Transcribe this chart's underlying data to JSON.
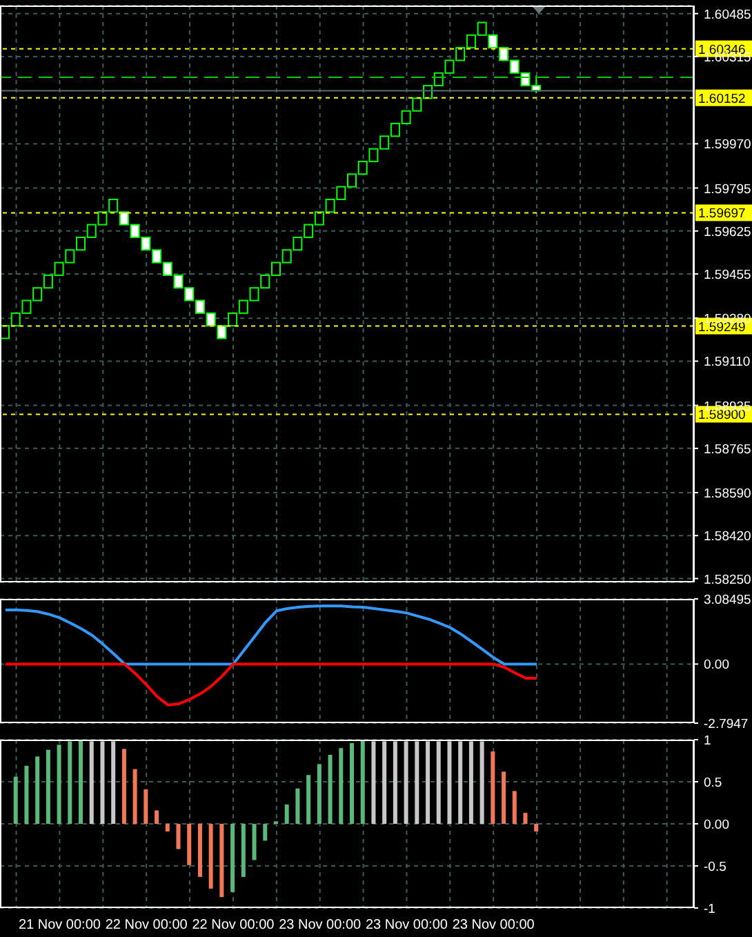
{
  "chart_data": [
    {
      "type": "candlestick",
      "tick_labels": "y",
      "grid": true,
      "categories": [
        null,
        null,
        null,
        null,
        null,
        null,
        null,
        null,
        null,
        null,
        null,
        null,
        null,
        null,
        null,
        null,
        null,
        null,
        null,
        null,
        null,
        null,
        null,
        null,
        null,
        null,
        null,
        null,
        null,
        null,
        null,
        null,
        null,
        null,
        null,
        null,
        null,
        null,
        null,
        null,
        null,
        null,
        null,
        null,
        null,
        null,
        null,
        null,
        null,
        null,
        null,
        null,
        null,
        null,
        null,
        null,
        null,
        null,
        null,
        null,
        null,
        null,
        null,
        null
      ],
      "ohlc": [
        [
          1.592,
          1.5925,
          1.592,
          1.5925
        ],
        [
          1.5925,
          1.593,
          1.5925,
          1.593
        ],
        [
          1.593,
          1.5935,
          1.593,
          1.5935
        ],
        [
          1.5935,
          1.594,
          1.5935,
          1.594
        ],
        [
          1.594,
          1.5945,
          1.594,
          1.5945
        ],
        [
          1.5945,
          1.595,
          1.5945,
          1.595
        ],
        [
          1.595,
          1.5955,
          1.595,
          1.5955
        ],
        [
          1.5955,
          1.596,
          1.5955,
          1.596
        ],
        [
          1.596,
          1.5965,
          1.596,
          1.5965
        ],
        [
          1.5965,
          1.597,
          1.5965,
          1.597
        ],
        [
          1.597,
          1.5975,
          1.597,
          1.5975
        ],
        [
          1.597,
          1.597,
          1.5965,
          1.5965
        ],
        [
          1.5965,
          1.5965,
          1.596,
          1.596
        ],
        [
          1.596,
          1.596,
          1.5955,
          1.5955
        ],
        [
          1.5955,
          1.5955,
          1.595,
          1.595
        ],
        [
          1.595,
          1.595,
          1.5945,
          1.5945
        ],
        [
          1.5945,
          1.5945,
          1.594,
          1.594
        ],
        [
          1.594,
          1.594,
          1.5935,
          1.5935
        ],
        [
          1.5935,
          1.5935,
          1.593,
          1.593
        ],
        [
          1.593,
          1.593,
          1.5925,
          1.5925
        ],
        [
          1.5925,
          1.5925,
          1.592,
          1.592
        ],
        [
          1.5925,
          1.593,
          1.5925,
          1.593
        ],
        [
          1.593,
          1.5935,
          1.593,
          1.5935
        ],
        [
          1.5935,
          1.594,
          1.5935,
          1.594
        ],
        [
          1.594,
          1.5945,
          1.594,
          1.5945
        ],
        [
          1.5945,
          1.595,
          1.5945,
          1.595
        ],
        [
          1.595,
          1.5955,
          1.595,
          1.5955
        ],
        [
          1.5955,
          1.596,
          1.5955,
          1.596
        ],
        [
          1.596,
          1.5965,
          1.596,
          1.5965
        ],
        [
          1.5965,
          1.597,
          1.5965,
          1.597
        ],
        [
          1.597,
          1.5975,
          1.597,
          1.5975
        ],
        [
          1.5975,
          1.598,
          1.5975,
          1.598
        ],
        [
          1.598,
          1.5985,
          1.598,
          1.5985
        ],
        [
          1.5985,
          1.599,
          1.5985,
          1.599
        ],
        [
          1.599,
          1.5995,
          1.599,
          1.5995
        ],
        [
          1.5995,
          1.6,
          1.5995,
          1.6
        ],
        [
          1.6,
          1.6005,
          1.6,
          1.6005
        ],
        [
          1.6005,
          1.601,
          1.6005,
          1.601
        ],
        [
          1.601,
          1.6015,
          1.601,
          1.6015
        ],
        [
          1.6015,
          1.602,
          1.6015,
          1.602
        ],
        [
          1.602,
          1.6025,
          1.602,
          1.6025
        ],
        [
          1.6025,
          1.603,
          1.6025,
          1.603
        ],
        [
          1.603,
          1.6035,
          1.603,
          1.6035
        ],
        [
          1.6035,
          1.604,
          1.6035,
          1.604
        ],
        [
          1.604,
          1.6045,
          1.604,
          1.6045
        ],
        [
          1.604,
          1.604,
          1.6035,
          1.6035
        ],
        [
          1.6035,
          1.6035,
          1.603,
          1.603
        ],
        [
          1.603,
          1.603,
          1.6025,
          1.6025
        ],
        [
          1.6025,
          1.6025,
          1.602,
          1.602
        ],
        [
          1.602,
          1.6024,
          1.6017,
          1.6018
        ],
        null,
        null,
        null,
        null,
        null,
        null,
        null,
        null,
        null,
        null,
        null,
        null,
        null,
        null
      ],
      "ylim": [
        1.58235,
        1.60517
      ],
      "yticks": [
        1.60485,
        1.60315,
        {
          "value": 1.5997,
          "label": "1.59970"
        },
        1.59795,
        1.59625,
        1.59455,
        {
          "value": 1.5928,
          "label": "1.59280"
        },
        {
          "value": 1.5911,
          "label": "1.59110"
        },
        1.58935,
        1.58765,
        {
          "value": 1.5859,
          "label": "1.58590"
        },
        {
          "value": 1.5842,
          "label": "1.58420"
        },
        {
          "value": 1.5825,
          "label": "1.58250"
        }
      ],
      "ref_lines": [
        {
          "axis": "y",
          "value": 1.60346,
          "label": "1.60346",
          "color": "#ffff00",
          "line_style": "dotted"
        },
        {
          "axis": "y",
          "value": 1.60152,
          "label": "1.60152",
          "color": "#ffff00",
          "line_style": "dotted"
        },
        {
          "axis": "y",
          "value": 1.59697,
          "label": "1.59697",
          "color": "#ffff00",
          "line_style": "dotted"
        },
        {
          "axis": "y",
          "value": 1.59249,
          "label": "1.59249",
          "color": "#ffff00",
          "line_style": "dotted"
        },
        {
          "axis": "y",
          "value": 1.589,
          "label": "1.58900",
          "color": "#ffff00",
          "line_style": "dotted"
        },
        {
          "axis": "y",
          "value": 1.60233,
          "color": "#00c800",
          "line_style": "dashed"
        },
        {
          "axis": "y",
          "value": 1.6018,
          "color": "#5a6e6e",
          "line_style": "solid"
        }
      ]
    },
    {
      "type": "line",
      "tick_labels": "y",
      "grid": true,
      "categories": [
        null,
        null,
        null,
        null,
        null,
        null,
        null,
        null,
        null,
        null,
        null,
        null,
        null,
        null,
        null,
        null,
        null,
        null,
        null,
        null,
        null,
        null,
        null,
        null,
        null,
        null,
        null,
        null,
        null,
        null,
        null,
        null,
        null,
        null,
        null,
        null,
        null,
        null,
        null,
        null,
        null,
        null,
        null,
        null,
        null,
        null,
        null,
        null,
        null,
        null,
        null,
        null,
        null,
        null,
        null,
        null,
        null,
        null,
        null,
        null,
        null,
        null,
        null,
        null
      ],
      "series": [
        {
          "color": "#3399ff",
          "values": [
            2.56,
            2.56,
            2.54,
            2.48,
            2.36,
            2.19,
            1.94,
            1.67,
            1.36,
            0.94,
            0.48,
            0,
            0,
            0,
            0,
            0,
            0,
            0,
            0,
            0,
            0,
            0,
            0.65,
            1.31,
            1.98,
            2.52,
            2.63,
            2.69,
            2.73,
            2.75,
            2.75,
            2.75,
            2.71,
            2.69,
            2.63,
            2.56,
            2.5,
            2.42,
            2.27,
            2.13,
            1.94,
            1.73,
            1.42,
            1.06,
            0.69,
            0.31,
            0,
            0,
            0,
            0,
            null,
            null,
            null,
            null,
            null,
            null,
            null,
            null,
            null,
            null,
            null,
            null,
            null,
            null
          ]
        },
        {
          "color": "#ff0000",
          "values": [
            0,
            0,
            0,
            0,
            0,
            0,
            0,
            0,
            0,
            0,
            0,
            0,
            -0.46,
            -0.98,
            -1.54,
            -1.94,
            -1.88,
            -1.67,
            -1.4,
            -1.04,
            -0.56,
            0,
            0,
            0,
            0,
            0,
            0,
            0,
            0,
            0,
            0,
            0,
            0,
            0,
            0,
            0,
            0,
            0,
            0,
            0,
            0,
            0,
            0,
            0,
            0,
            0,
            -0.15,
            -0.42,
            -0.67,
            -0.67,
            null,
            null,
            null,
            null,
            null,
            null,
            null,
            null,
            null,
            null,
            null,
            null,
            null,
            null
          ]
        }
      ],
      "ylim": [
        -2.7947,
        3.08495
      ],
      "yticks": [
        3.08495,
        {
          "value": 0,
          "label": "0.00"
        },
        -2.7947
      ]
    },
    {
      "type": "bar",
      "grid": true,
      "categories": [
        null,
        null,
        null,
        null,
        null,
        "21 Nov 00:00",
        null,
        null,
        null,
        null,
        null,
        null,
        null,
        "22 Nov 00:00",
        null,
        null,
        null,
        null,
        null,
        null,
        null,
        "22 Nov 00:00",
        null,
        null,
        null,
        null,
        null,
        null,
        null,
        "23 Nov 00:00",
        null,
        null,
        null,
        null,
        null,
        null,
        null,
        "23 Nov 00:00",
        null,
        null,
        null,
        null,
        null,
        null,
        null,
        "23 Nov 00:00",
        null,
        null,
        null,
        null,
        null,
        null,
        null,
        null,
        null,
        null,
        null,
        null,
        null,
        null,
        null,
        null,
        null,
        null
      ],
      "values": [
        null,
        0.56,
        0.69,
        0.8,
        0.88,
        0.94,
        0.98,
        1,
        0.98,
        0.98,
        0.98,
        0.89,
        0.65,
        0.41,
        0.16,
        -0.09,
        -0.3,
        -0.49,
        -0.63,
        -0.77,
        -0.87,
        -0.81,
        -0.63,
        -0.43,
        -0.2,
        0.03,
        0.23,
        0.42,
        0.58,
        0.71,
        0.82,
        0.9,
        0.96,
        1,
        0.98,
        0.98,
        0.98,
        0.98,
        0.98,
        0.98,
        0.98,
        0.98,
        0.98,
        0.98,
        0.98,
        0.86,
        0.62,
        0.39,
        0.13,
        -0.09,
        null,
        null,
        null,
        null,
        null,
        null,
        null,
        null,
        null,
        null,
        null,
        null,
        null,
        null
      ],
      "colors": [
        "#5cb87a",
        "#5cb87a",
        "#5cb87a",
        "#5cb87a",
        "#5cb87a",
        "#5cb87a",
        "#5cb87a",
        "#5cb87a",
        "#c8c8c8",
        "#c8c8c8",
        "#c8c8c8",
        "#f07858",
        "#f07858",
        "#f07858",
        "#f07858",
        "#f07858",
        "#f07858",
        "#f07858",
        "#f07858",
        "#f07858",
        "#f07858",
        "#5cb87a",
        "#5cb87a",
        "#5cb87a",
        "#5cb87a",
        "#5cb87a",
        "#5cb87a",
        "#5cb87a",
        "#5cb87a",
        "#5cb87a",
        "#5cb87a",
        "#5cb87a",
        "#5cb87a",
        "#5cb87a",
        "#c8c8c8",
        "#c8c8c8",
        "#c8c8c8",
        "#c8c8c8",
        "#c8c8c8",
        "#c8c8c8",
        "#c8c8c8",
        "#c8c8c8",
        "#c8c8c8",
        "#c8c8c8",
        "#c8c8c8",
        "#f07858",
        "#f07858",
        "#f07858",
        "#f07858",
        "#f07858",
        null,
        null,
        null,
        null,
        null,
        null,
        null,
        null,
        null,
        null,
        null,
        null,
        null,
        null
      ],
      "ylim": [
        -1,
        1
      ],
      "yticks": [
        1,
        0.5,
        {
          "value": 0,
          "label": "0.00"
        },
        -0.5,
        -1
      ]
    }
  ]
}
